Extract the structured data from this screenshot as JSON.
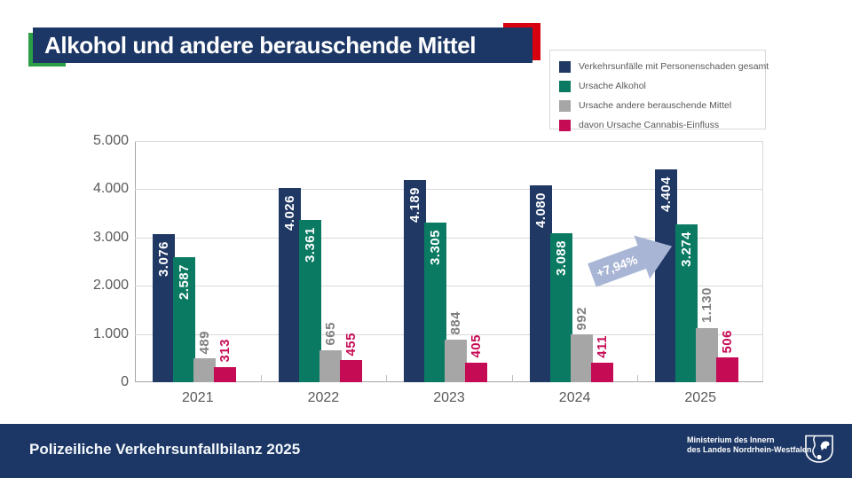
{
  "header": {
    "title": "Alkohol und andere berauschende Mittel"
  },
  "colors": {
    "navy": "#1F3864",
    "teal": "#0A7A62",
    "gray": "#A6A6A6",
    "magenta": "#C60B55",
    "accent_green": "#2B9E46",
    "accent_red": "#D6000E",
    "arrow": "#A9B5D5",
    "axis_text": "#595959"
  },
  "chart_data": {
    "type": "bar",
    "grouped": true,
    "categories": [
      "2021",
      "2022",
      "2023",
      "2024",
      "2025"
    ],
    "series": [
      {
        "name": "Verkehrsunfälle mit Personenschaden gesamt",
        "color": "#1F3864",
        "label_color": "#FFFFFF",
        "label_placement": "inside",
        "values": [
          3076,
          4026,
          4189,
          4080,
          4404
        ],
        "labels": [
          "3.076",
          "4.026",
          "4.189",
          "4.080",
          "4.404"
        ]
      },
      {
        "name": "Ursache Alkohol",
        "color": "#0A7A62",
        "label_color": "#FFFFFF",
        "label_placement": "inside",
        "values": [
          2587,
          3361,
          3305,
          3088,
          3274
        ],
        "labels": [
          "2.587",
          "3.361",
          "3.305",
          "3.088",
          "3.274"
        ]
      },
      {
        "name": "Ursache andere berauschende Mittel",
        "color": "#A6A6A6",
        "label_color": "#7F7F7F",
        "label_placement": "above",
        "values": [
          489,
          665,
          884,
          992,
          1130
        ],
        "labels": [
          "489",
          "665",
          "884",
          "992",
          "1.130"
        ]
      },
      {
        "name": "davon Ursache Cannabis-Einfluss",
        "color": "#C60B55",
        "label_color": "#C60B55",
        "label_placement": "above",
        "values": [
          313,
          455,
          405,
          411,
          506
        ],
        "labels": [
          "313",
          "455",
          "405",
          "411",
          "506"
        ]
      }
    ],
    "ylim": [
      0,
      5000
    ],
    "ytick_step": 1000,
    "ytick_labels": [
      "0",
      "1.000",
      "2.000",
      "3.000",
      "4.000",
      "5.000"
    ],
    "grid": true,
    "legend_position": "top-right",
    "annotation": {
      "text": "+7,94%",
      "between": [
        "2024",
        "2025"
      ]
    }
  },
  "footer": {
    "title": "Polizeiliche Verkehrsunfallbilanz 2025",
    "ministry_line1": "Ministerium des Innern",
    "ministry_line2": "des Landes Nordrhein-Westfalen"
  }
}
